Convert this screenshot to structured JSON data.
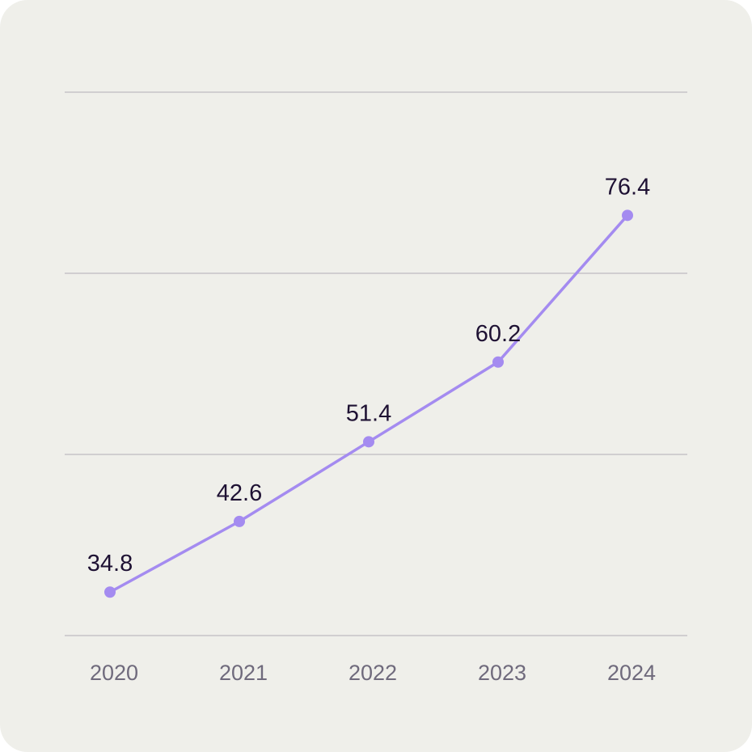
{
  "chart_data": {
    "type": "line",
    "title": "",
    "xlabel": "",
    "ylabel": "",
    "x": [
      "2020",
      "2021",
      "2022",
      "2023",
      "2024"
    ],
    "series": [
      {
        "values": [
          34.8,
          42.6,
          51.4,
          60.2,
          76.4
        ]
      }
    ],
    "data_labels": [
      "34.8",
      "42.6",
      "51.4",
      "60.2",
      "76.4"
    ],
    "ylim": [
      30,
      90
    ],
    "y_gridlines": [
      30,
      50,
      70,
      90
    ],
    "grid": "horizontal",
    "legend": "none",
    "colors": {
      "line": "#a48bf0",
      "grid": "#c6c4c8",
      "background": "#efefea",
      "tick_text": "#6f6a7c",
      "label_text": "#1e1133"
    }
  }
}
